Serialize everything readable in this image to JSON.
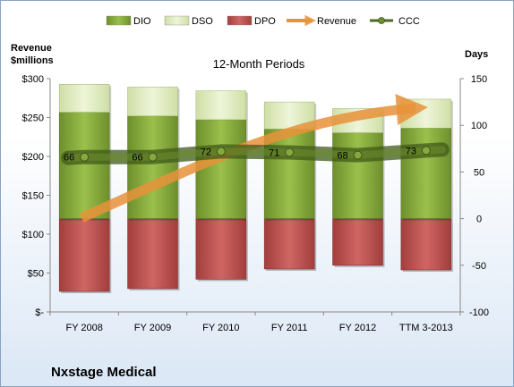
{
  "chart_data": {
    "type": "bar",
    "title": "12-Month Periods",
    "company": "Nxstage Medical",
    "y_left_label": [
      "Revenue",
      "$millions"
    ],
    "y_right_label": "Days",
    "categories": [
      "FY 2008",
      "FY 2009",
      "FY 2010",
      "FY 2011",
      "FY 2012",
      "TTM 3-2013"
    ],
    "legend": [
      "DIO",
      "DSO",
      "DPO",
      "Revenue",
      "CCC"
    ],
    "legend_position": "top",
    "y_left": {
      "range": [
        0,
        300
      ],
      "ticks": [
        0,
        50,
        100,
        150,
        200,
        250,
        300
      ],
      "tick_labels": [
        "$-",
        "$50",
        "$100",
        "$150",
        "$200",
        "$250",
        "$300"
      ]
    },
    "y_right": {
      "range": [
        -100,
        150
      ],
      "ticks": [
        -100,
        -50,
        0,
        50,
        100,
        150
      ],
      "tick_labels": [
        "-100",
        "-50",
        "0",
        "50",
        "100",
        "150"
      ]
    },
    "grid": false,
    "series": [
      {
        "name": "DIO",
        "axis": "right",
        "kind": "stacked-bar-positive",
        "values": [
          114,
          110,
          106,
          96,
          92,
          97
        ]
      },
      {
        "name": "DSO",
        "axis": "right",
        "kind": "stacked-bar-positive",
        "values": [
          30,
          31,
          31,
          29,
          26,
          31
        ]
      },
      {
        "name": "DPO",
        "axis": "right",
        "kind": "stacked-bar-negative",
        "values": [
          -78,
          -75,
          -65,
          -54,
          -50,
          -55
        ]
      },
      {
        "name": "Revenue",
        "axis": "left",
        "kind": "arrow-line",
        "values": [
          121,
          152,
          198,
          231,
          252,
          262
        ]
      },
      {
        "name": "CCC",
        "axis": "right",
        "kind": "line-markers",
        "values": [
          66,
          66,
          72,
          71,
          68,
          73
        ],
        "labels": [
          "66",
          "66",
          "72",
          "71",
          "68",
          "73"
        ]
      }
    ],
    "colors": {
      "DIO": "#7a9b35",
      "DSO": "#d8e6b5",
      "DPO": "#b84a48",
      "Revenue": "#e8923a",
      "CCC": "#4e6a24"
    }
  }
}
